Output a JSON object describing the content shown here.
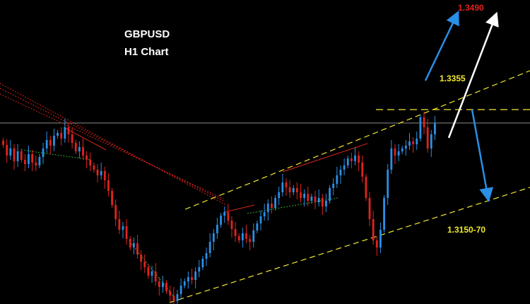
{
  "chart_data": {
    "type": "candlestick",
    "title": "GBPUSD",
    "subtitle": "H1 Chart",
    "price_range": [
      1.308,
      1.351
    ],
    "bull_color": "#2a8fe6",
    "bear_color": "#e0231e",
    "background": "#000000",
    "current_price": 1.3336,
    "levels": [
      {
        "label": "1.3490",
        "price": 1.349,
        "color": "#e0231e",
        "kind": "target"
      },
      {
        "label": "1.3355",
        "price": 1.3355,
        "color": "#f2e830",
        "kind": "resistance"
      },
      {
        "label": "1.3150-70",
        "price": 1.316,
        "color": "#f2e830",
        "kind": "support-zone"
      }
    ],
    "annotations": [
      {
        "name": "bullish-arrow-blue",
        "color": "#2a8fe6",
        "direction": "up"
      },
      {
        "name": "bullish-arrow-white",
        "color": "#ffffff",
        "direction": "up"
      },
      {
        "name": "bearish-arrow-blue",
        "color": "#2a8fe6",
        "direction": "down"
      }
    ],
    "candles_close": [
      1.3305,
      1.329,
      1.33,
      1.3282,
      1.3296,
      1.3284,
      1.3278,
      1.3292,
      1.328,
      1.3276,
      1.3288,
      1.33,
      1.3312,
      1.3304,
      1.3318,
      1.3322,
      1.3314,
      1.333,
      1.332,
      1.3308,
      1.3296,
      1.3302,
      1.329,
      1.3284,
      1.3276,
      1.327,
      1.3262,
      1.3268,
      1.3255,
      1.324,
      1.322,
      1.32,
      1.3185,
      1.319,
      1.3172,
      1.316,
      1.3166,
      1.315,
      1.314,
      1.3132,
      1.312,
      1.3126,
      1.3112,
      1.3104,
      1.311,
      1.3098,
      1.3092,
      1.3084,
      1.3094,
      1.3106,
      1.3112,
      1.3118,
      1.3114,
      1.3126,
      1.3132,
      1.3144,
      1.3152,
      1.3168,
      1.318,
      1.3192,
      1.3205,
      1.321,
      1.3198,
      1.3186,
      1.3176,
      1.317,
      1.318,
      1.3172,
      1.3168,
      1.3184,
      1.3194,
      1.3204,
      1.321,
      1.3222,
      1.3216,
      1.323,
      1.3238,
      1.3252,
      1.3245,
      1.3238,
      1.3244,
      1.3238,
      1.323,
      1.3236,
      1.3226,
      1.3232,
      1.3224,
      1.323,
      1.3218,
      1.3226,
      1.3244,
      1.325,
      1.3262,
      1.327,
      1.3276,
      1.3286,
      1.3282,
      1.329,
      1.328,
      1.326,
      1.323,
      1.32,
      1.317,
      1.316,
      1.3185,
      1.323,
      1.327,
      1.33,
      1.329,
      1.3296,
      1.33,
      1.3304,
      1.331,
      1.3306,
      1.3314,
      1.3344,
      1.333,
      1.33,
      1.332,
      1.3336
    ]
  }
}
